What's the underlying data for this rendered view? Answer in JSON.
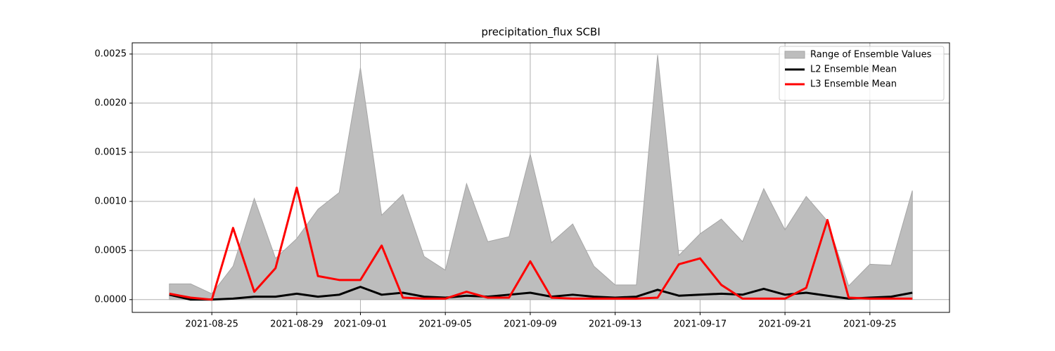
{
  "chart_data": {
    "type": "range-line",
    "title": "precipitation_flux SCBI",
    "x": [
      "2021-08-23",
      "2021-08-24",
      "2021-08-25",
      "2021-08-26",
      "2021-08-27",
      "2021-08-28",
      "2021-08-29",
      "2021-08-30",
      "2021-08-31",
      "2021-09-01",
      "2021-09-02",
      "2021-09-03",
      "2021-09-04",
      "2021-09-05",
      "2021-09-06",
      "2021-09-07",
      "2021-09-08",
      "2021-09-09",
      "2021-09-10",
      "2021-09-11",
      "2021-09-12",
      "2021-09-13",
      "2021-09-14",
      "2021-09-15",
      "2021-09-16",
      "2021-09-17",
      "2021-09-18",
      "2021-09-19",
      "2021-09-20",
      "2021-09-21",
      "2021-09-22",
      "2021-09-23",
      "2021-09-24",
      "2021-09-25",
      "2021-09-26",
      "2021-09-27"
    ],
    "range": {
      "name": "Range of Ensemble Values",
      "color": "#bdbdbd",
      "edge_color": "#a6a6a6",
      "lower": [
        0,
        0,
        0,
        0,
        0,
        0,
        0,
        0,
        0,
        0,
        0,
        0,
        0,
        0,
        0,
        0,
        0,
        0,
        0,
        0,
        0,
        0,
        0,
        0,
        0,
        0,
        0,
        0,
        0,
        0,
        0,
        0,
        0,
        0,
        0,
        0
      ],
      "upper": [
        0.00016,
        0.00016,
        6e-05,
        0.00034,
        0.00103,
        0.00042,
        0.00062,
        0.00092,
        0.00109,
        0.00236,
        0.00086,
        0.00107,
        0.00044,
        0.0003,
        0.00118,
        0.00059,
        0.00064,
        0.00148,
        0.00058,
        0.00077,
        0.00034,
        0.00015,
        0.00015,
        0.00249,
        0.00045,
        0.00067,
        0.00082,
        0.00059,
        0.00113,
        0.00071,
        0.00105,
        0.0008,
        0.00014,
        0.00036,
        0.00035,
        0.00111
      ]
    },
    "series": [
      {
        "name": "L2 Ensemble Mean",
        "color": "#000000",
        "values": [
          5e-05,
          0,
          0,
          1e-05,
          3e-05,
          3e-05,
          6e-05,
          3e-05,
          5e-05,
          0.00013,
          5e-05,
          7e-05,
          3e-05,
          2e-05,
          4e-05,
          3e-05,
          5e-05,
          7e-05,
          3e-05,
          5e-05,
          3e-05,
          2e-05,
          3e-05,
          0.0001,
          4e-05,
          5e-05,
          6e-05,
          5e-05,
          0.00011,
          5e-05,
          7e-05,
          4e-05,
          1e-05,
          2e-05,
          3e-05,
          7e-05
        ]
      },
      {
        "name": "L3 Ensemble Mean",
        "color": "#ff0000",
        "values": [
          6e-05,
          2e-05,
          0,
          0.00073,
          8e-05,
          0.00032,
          0.00114,
          0.00024,
          0.0002,
          0.0002,
          0.00055,
          2e-05,
          1e-05,
          1e-05,
          8e-05,
          2e-05,
          2e-05,
          0.00039,
          2e-05,
          1e-05,
          1e-05,
          1e-05,
          1e-05,
          2e-05,
          0.00036,
          0.00042,
          0.00015,
          1e-05,
          1e-05,
          1e-05,
          0.00012,
          0.00081,
          2e-05,
          1e-05,
          1e-05,
          1e-05
        ]
      }
    ],
    "xlim": [
      "2021-08-21T06:00",
      "2021-09-28T18:00"
    ],
    "xticks": [
      "2021-08-25",
      "2021-08-29",
      "2021-09-01",
      "2021-09-05",
      "2021-09-09",
      "2021-09-13",
      "2021-09-17",
      "2021-09-21",
      "2021-09-25"
    ],
    "ylim": [
      -0.00013,
      0.002614
    ],
    "yticks": [
      {
        "value": 0,
        "label": "0.0000"
      },
      {
        "value": 0.0005,
        "label": "0.0005"
      },
      {
        "value": 0.001,
        "label": "0.0010"
      },
      {
        "value": 0.0015,
        "label": "0.0015"
      },
      {
        "value": 0.002,
        "label": "0.0020"
      },
      {
        "value": 0.0025,
        "label": "0.0025"
      }
    ],
    "grid": true,
    "legend": "upper right"
  }
}
